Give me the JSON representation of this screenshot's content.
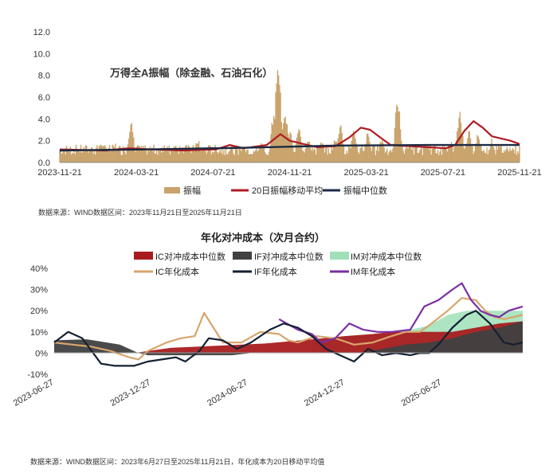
{
  "chart_data": [
    {
      "type": "bar+line",
      "title": "万得全A振幅（除金融、石油石化）",
      "ylim": [
        0,
        12
      ],
      "yticks": [
        "0.0",
        "2.0",
        "4.0",
        "6.0",
        "8.0",
        "10.0",
        "12.0"
      ],
      "xticks": [
        "2023-11-21",
        "2024-03-21",
        "2024-07-21",
        "2024-11-21",
        "2025-03-21",
        "2025-07-21",
        "2025-11-21"
      ],
      "x_range": [
        "2023-11-21",
        "2025-11-21"
      ],
      "legend": [
        "振幅",
        "20日振幅移动平均",
        "振幅中位数"
      ],
      "colors": {
        "amplitude": "#c9a36b",
        "ma20": "#b01c22",
        "median": "#1c2a44"
      },
      "series": [
        {
          "name": "振幅",
          "type": "bar",
          "peaks": [
            [
              0.04,
              1.4
            ],
            [
              0.09,
              2.0
            ],
            [
              0.12,
              1.8
            ],
            [
              0.155,
              4.0
            ],
            [
              0.17,
              1.8
            ],
            [
              0.2,
              1.0
            ],
            [
              0.25,
              1.6
            ],
            [
              0.3,
              2.2
            ],
            [
              0.34,
              1.2
            ],
            [
              0.4,
              1.6
            ],
            [
              0.44,
              1.9
            ],
            [
              0.465,
              4.4
            ],
            [
              0.475,
              10.0
            ],
            [
              0.49,
              5.2
            ],
            [
              0.5,
              3.0
            ],
            [
              0.52,
              3.2
            ],
            [
              0.54,
              2.4
            ],
            [
              0.57,
              2.0
            ],
            [
              0.6,
              2.4
            ],
            [
              0.61,
              3.6
            ],
            [
              0.64,
              3.0
            ],
            [
              0.67,
              2.8
            ],
            [
              0.7,
              2.4
            ],
            [
              0.735,
              6.1
            ],
            [
              0.76,
              1.8
            ],
            [
              0.8,
              1.6
            ],
            [
              0.85,
              2.0
            ],
            [
              0.87,
              4.8
            ],
            [
              0.89,
              3.0
            ],
            [
              0.91,
              2.8
            ],
            [
              0.94,
              2.2
            ],
            [
              0.98,
              1.4
            ]
          ],
          "baseline": 1.1
        },
        {
          "name": "20日振幅移动平均",
          "type": "line",
          "points": [
            [
              0,
              1.2
            ],
            [
              0.05,
              1.15
            ],
            [
              0.1,
              1.1
            ],
            [
              0.15,
              1.3
            ],
            [
              0.2,
              1.2
            ],
            [
              0.27,
              1.1
            ],
            [
              0.34,
              1.2
            ],
            [
              0.37,
              1.6
            ],
            [
              0.4,
              1.3
            ],
            [
              0.45,
              1.6
            ],
            [
              0.48,
              2.6
            ],
            [
              0.5,
              2.0
            ],
            [
              0.53,
              1.7
            ],
            [
              0.56,
              1.4
            ],
            [
              0.6,
              1.5
            ],
            [
              0.63,
              2.3
            ],
            [
              0.655,
              3.2
            ],
            [
              0.675,
              3.0
            ],
            [
              0.7,
              2.2
            ],
            [
              0.72,
              1.6
            ],
            [
              0.76,
              1.5
            ],
            [
              0.8,
              1.4
            ],
            [
              0.84,
              1.3
            ],
            [
              0.86,
              1.6
            ],
            [
              0.88,
              2.9
            ],
            [
              0.9,
              3.8
            ],
            [
              0.92,
              3.2
            ],
            [
              0.94,
              2.4
            ],
            [
              0.96,
              2.2
            ],
            [
              0.98,
              2.0
            ],
            [
              1,
              1.7
            ]
          ]
        },
        {
          "name": "振幅中位数",
          "type": "line",
          "points": [
            [
              0,
              1.1
            ],
            [
              0.2,
              1.2
            ],
            [
              0.4,
              1.35
            ],
            [
              0.5,
              1.45
            ],
            [
              0.6,
              1.55
            ],
            [
              0.8,
              1.6
            ],
            [
              1,
              1.6
            ]
          ]
        }
      ]
    },
    {
      "type": "area+line",
      "title": "年化对冲成本（次月合约）",
      "ylim": [
        -10,
        40
      ],
      "yticks": [
        "-10%",
        "0%",
        "10%",
        "20%",
        "30%",
        "40%"
      ],
      "xticks": [
        "2023-06-27",
        "2023-12-27",
        "2024-06-27",
        "2024-12-27",
        "2025-06-27"
      ],
      "x_range": [
        "2023-06-27",
        "2025-11-21"
      ],
      "legend": [
        "IC对冲成本中位数",
        "IF对冲成本中位数",
        "IM对冲成本中位数",
        "IC年化成本",
        "IF年化成本",
        "IM年化成本"
      ],
      "colors": {
        "ic_med": "#a81c1f",
        "if_med": "#404040",
        "im_med": "#9fe0b8",
        "ic": "#d8a56c",
        "if": "#142033",
        "im": "#7b2fa3"
      },
      "series": [
        {
          "name": "IF对冲成本中位数",
          "type": "area",
          "points": [
            [
              0,
              6
            ],
            [
              0.07,
              6.5
            ],
            [
              0.14,
              4
            ],
            [
              0.18,
              0
            ],
            [
              0.2,
              -1
            ],
            [
              0.3,
              -1
            ],
            [
              0.38,
              -1
            ],
            [
              0.42,
              0
            ],
            [
              0.6,
              0
            ],
            [
              0.65,
              0
            ],
            [
              0.7,
              2
            ],
            [
              0.75,
              4
            ],
            [
              0.8,
              5
            ],
            [
              0.85,
              7
            ],
            [
              0.9,
              10
            ],
            [
              0.95,
              12
            ],
            [
              1,
              15
            ]
          ]
        },
        {
          "name": "IC对冲成本中位数",
          "type": "area",
          "points": [
            [
              0.17,
              0
            ],
            [
              0.2,
              1
            ],
            [
              0.25,
              2.5
            ],
            [
              0.35,
              3.5
            ],
            [
              0.45,
              4.5
            ],
            [
              0.55,
              6.5
            ],
            [
              0.62,
              8
            ],
            [
              0.68,
              9
            ],
            [
              0.72,
              10
            ],
            [
              0.78,
              10
            ],
            [
              0.85,
              10
            ],
            [
              0.9,
              12
            ],
            [
              0.95,
              14
            ],
            [
              1,
              15
            ]
          ]
        },
        {
          "name": "IM对冲成本中位数",
          "type": "area",
          "points": [
            [
              0.55,
              5
            ],
            [
              0.62,
              8
            ],
            [
              0.68,
              9
            ],
            [
              0.72,
              10
            ],
            [
              0.76,
              11
            ],
            [
              0.8,
              13
            ],
            [
              0.84,
              18
            ],
            [
              0.88,
              20
            ],
            [
              0.92,
              20
            ],
            [
              0.96,
              20
            ],
            [
              1,
              20
            ]
          ]
        },
        {
          "name": "IC年化成本",
          "type": "line",
          "points": [
            [
              0,
              5
            ],
            [
              0.04,
              4
            ],
            [
              0.08,
              3
            ],
            [
              0.12,
              1
            ],
            [
              0.16,
              -2
            ],
            [
              0.18,
              -3
            ],
            [
              0.2,
              1
            ],
            [
              0.24,
              5
            ],
            [
              0.27,
              7
            ],
            [
              0.3,
              8
            ],
            [
              0.32,
              19
            ],
            [
              0.34,
              12
            ],
            [
              0.36,
              5
            ],
            [
              0.4,
              5
            ],
            [
              0.44,
              10
            ],
            [
              0.48,
              9
            ],
            [
              0.5,
              6
            ],
            [
              0.52,
              5
            ],
            [
              0.56,
              8
            ],
            [
              0.6,
              7
            ],
            [
              0.64,
              4
            ],
            [
              0.68,
              5
            ],
            [
              0.72,
              8
            ],
            [
              0.75,
              10
            ],
            [
              0.78,
              10
            ],
            [
              0.8,
              13
            ],
            [
              0.84,
              20
            ],
            [
              0.87,
              26
            ],
            [
              0.9,
              25
            ],
            [
              0.92,
              20
            ],
            [
              0.94,
              17
            ],
            [
              0.96,
              16
            ],
            [
              0.98,
              17
            ],
            [
              1,
              18
            ]
          ]
        },
        {
          "name": "IF年化成本",
          "type": "line",
          "points": [
            [
              0,
              5
            ],
            [
              0.03,
              10
            ],
            [
              0.06,
              7
            ],
            [
              0.08,
              1
            ],
            [
              0.1,
              -5
            ],
            [
              0.13,
              -6
            ],
            [
              0.17,
              -6
            ],
            [
              0.2,
              -4
            ],
            [
              0.23,
              -3
            ],
            [
              0.26,
              -2
            ],
            [
              0.28,
              -4
            ],
            [
              0.31,
              1
            ],
            [
              0.33,
              7
            ],
            [
              0.36,
              6
            ],
            [
              0.39,
              2
            ],
            [
              0.42,
              5
            ],
            [
              0.46,
              11
            ],
            [
              0.49,
              14
            ],
            [
              0.52,
              12
            ],
            [
              0.55,
              8
            ],
            [
              0.58,
              2
            ],
            [
              0.61,
              -1
            ],
            [
              0.64,
              -4
            ],
            [
              0.67,
              2
            ],
            [
              0.7,
              -1
            ],
            [
              0.73,
              0
            ],
            [
              0.76,
              -1
            ],
            [
              0.78,
              0
            ],
            [
              0.8,
              0
            ],
            [
              0.82,
              4
            ],
            [
              0.85,
              12
            ],
            [
              0.88,
              18
            ],
            [
              0.9,
              20
            ],
            [
              0.93,
              14
            ],
            [
              0.96,
              5
            ],
            [
              0.98,
              4
            ],
            [
              1,
              5
            ]
          ]
        },
        {
          "name": "IM年化成本",
          "type": "line",
          "points": [
            [
              0.48,
              16
            ],
            [
              0.52,
              11
            ],
            [
              0.55,
              9
            ],
            [
              0.57,
              5
            ],
            [
              0.6,
              7
            ],
            [
              0.63,
              14
            ],
            [
              0.66,
              11
            ],
            [
              0.69,
              10
            ],
            [
              0.72,
              10
            ],
            [
              0.76,
              11
            ],
            [
              0.79,
              22
            ],
            [
              0.82,
              25
            ],
            [
              0.85,
              30
            ],
            [
              0.87,
              33
            ],
            [
              0.89,
              25
            ],
            [
              0.91,
              20
            ],
            [
              0.93,
              18
            ],
            [
              0.95,
              17
            ],
            [
              0.97,
              20
            ],
            [
              1,
              22
            ]
          ]
        }
      ]
    }
  ],
  "source1": "数据来源：WIND数据区间：2023年11月21日至2025年11月21日",
  "source2": "数据来源：WIND数据区间：2023年6月27日至2025年11月21日，年化成本为20日移动平均值"
}
